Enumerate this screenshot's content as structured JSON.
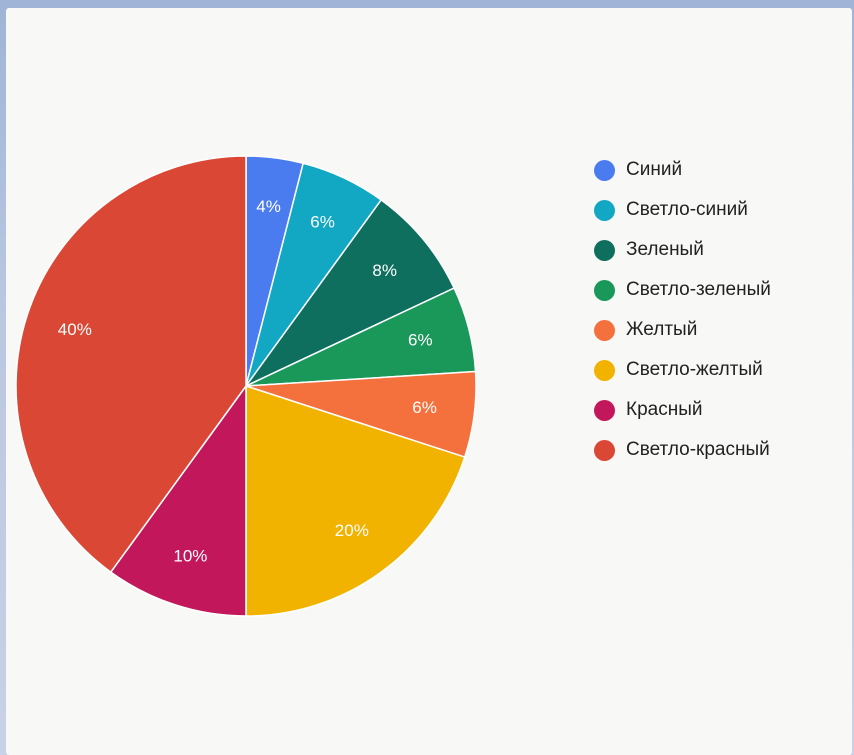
{
  "chart_data": {
    "type": "pie",
    "title": "",
    "categories": [
      "Синий",
      "Светло-синий",
      "Зеленый",
      "Светло-зеленый",
      "Желтый",
      "Светло-желтый",
      "Красный",
      "Светло-красный"
    ],
    "values": [
      4,
      6,
      8,
      6,
      6,
      20,
      10,
      40
    ],
    "labels": [
      "4%",
      "6%",
      "8%",
      "6%",
      "6%",
      "20%",
      "10%",
      "40%"
    ],
    "colors": [
      "#4a7cf0",
      "#12a8c4",
      "#0e6f5e",
      "#19985a",
      "#f4713e",
      "#f2b200",
      "#c2185b",
      "#db4735"
    ],
    "legend": {
      "placement": "right"
    }
  }
}
